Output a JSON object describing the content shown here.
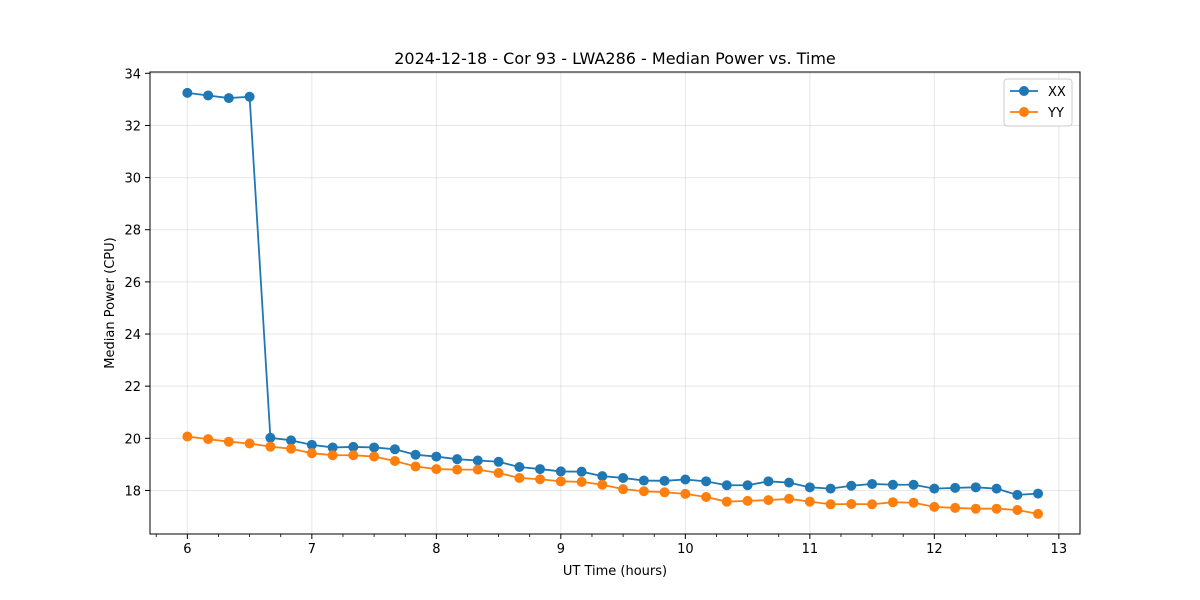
{
  "chart_data": {
    "type": "line",
    "title": "2024-12-18 - Cor 93 - LWA286 - Median Power vs. Time",
    "xlabel": "UT Time (hours)",
    "ylabel": "Median Power (CPU)",
    "xlim": [
      5.7,
      13.17
    ],
    "ylim": [
      16.33,
      34.05
    ],
    "xticks": [
      6,
      7,
      8,
      9,
      10,
      11,
      12,
      13
    ],
    "yticks": [
      18,
      20,
      22,
      24,
      26,
      28,
      30,
      32,
      34
    ],
    "grid": true,
    "legend_position": "top-right",
    "x": [
      6.0,
      6.167,
      6.333,
      6.5,
      6.667,
      6.833,
      7.0,
      7.167,
      7.333,
      7.5,
      7.667,
      7.833,
      8.0,
      8.167,
      8.333,
      8.5,
      8.667,
      8.833,
      9.0,
      9.167,
      9.333,
      9.5,
      9.667,
      9.833,
      10.0,
      10.167,
      10.333,
      10.5,
      10.667,
      10.833,
      11.0,
      11.167,
      11.333,
      11.5,
      11.667,
      11.833,
      12.0,
      12.167,
      12.333,
      12.5,
      12.667,
      12.833
    ],
    "series": [
      {
        "name": "XX",
        "color": "#1f77b4",
        "values": [
          33.25,
          33.15,
          33.05,
          33.1,
          20.02,
          19.92,
          19.75,
          19.65,
          19.67,
          19.65,
          19.58,
          19.37,
          19.3,
          19.2,
          19.15,
          19.1,
          18.9,
          18.82,
          18.73,
          18.72,
          18.55,
          18.48,
          18.38,
          18.37,
          18.42,
          18.35,
          18.2,
          18.2,
          18.35,
          18.3,
          18.12,
          18.07,
          18.18,
          18.25,
          18.22,
          18.22,
          18.07,
          18.1,
          18.12,
          18.07,
          17.83,
          17.88
        ]
      },
      {
        "name": "YY",
        "color": "#ff7f0e",
        "values": [
          20.07,
          19.97,
          19.87,
          19.8,
          19.68,
          19.6,
          19.43,
          19.35,
          19.35,
          19.3,
          19.13,
          18.92,
          18.82,
          18.8,
          18.8,
          18.67,
          18.48,
          18.43,
          18.35,
          18.33,
          18.22,
          18.05,
          17.97,
          17.93,
          17.87,
          17.75,
          17.57,
          17.6,
          17.63,
          17.68,
          17.57,
          17.47,
          17.48,
          17.47,
          17.55,
          17.53,
          17.37,
          17.33,
          17.3,
          17.3,
          17.25,
          17.1
        ]
      }
    ]
  }
}
